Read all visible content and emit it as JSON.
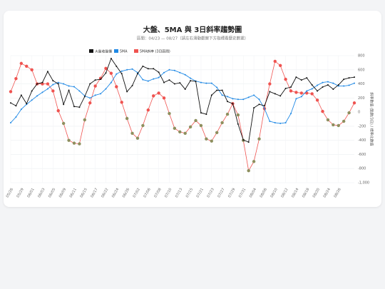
{
  "chart_data": {
    "type": "line",
    "title": "大盤、5MA 與 3日斜率趨勢圖",
    "subtitle": "區間：04/23 — 08/27（請左右滑動觀察下方指標看歷史數據）",
    "y_label": "斜率數值 (點數/3日) / 標準化數值",
    "categories": [
      "05/26",
      null,
      "05/29",
      null,
      "06/01",
      null,
      "06/03",
      null,
      "06/05",
      null,
      "06/09",
      null,
      "06/11",
      null,
      "06/15",
      null,
      "06/17",
      null,
      "06/22",
      null,
      "06/24",
      null,
      "06/26",
      null,
      "07/02",
      null,
      "07/06",
      null,
      "07/08",
      null,
      "07/10",
      null,
      "07/13",
      null,
      "07/15",
      null,
      "07/21",
      null,
      "07/23",
      null,
      "07/27",
      null,
      "07/29",
      null,
      "07/31",
      null,
      "08/04",
      null,
      "08/06",
      null,
      "08/10",
      null,
      "08/12",
      null,
      "08/14",
      null,
      "08/18",
      null,
      "08/20",
      null,
      "08/24",
      null,
      "08/26",
      null,
      null,
      null
    ],
    "series": [
      {
        "name": "大盤收盤價",
        "color": "#111111",
        "values": [
          130,
          90,
          240,
          120,
          300,
          400,
          420,
          575,
          445,
          400,
          110,
          310,
          80,
          70,
          220,
          400,
          455,
          465,
          555,
          760,
          650,
          545,
          290,
          375,
          545,
          650,
          615,
          615,
          565,
          420,
          455,
          400,
          415,
          325,
          445,
          435,
          -10,
          -30,
          240,
          310,
          310,
          150,
          120,
          -170,
          -395,
          -425,
          60,
          110,
          90,
          290,
          260,
          230,
          335,
          355,
          495,
          455,
          485,
          385,
          300,
          355,
          385,
          325,
          385,
          465,
          485,
          495
        ]
      },
      {
        "name": "5MA",
        "color": "#1e88e5",
        "values": [
          -150,
          -70,
          40,
          110,
          170,
          230,
          280,
          330,
          390,
          420,
          400,
          370,
          360,
          300,
          230,
          200,
          240,
          260,
          330,
          420,
          540,
          580,
          600,
          610,
          560,
          460,
          440,
          470,
          490,
          560,
          600,
          590,
          560,
          530,
          480,
          440,
          420,
          410,
          410,
          350,
          240,
          220,
          190,
          180,
          180,
          210,
          240,
          180,
          50,
          -130,
          -150,
          -160,
          -150,
          -20,
          190,
          220,
          300,
          330,
          380,
          420,
          430,
          410,
          370,
          370,
          380,
          410
        ]
      },
      {
        "name": "5MA斜率 (3日區間)",
        "color": "#ef5350",
        "negative_color": "#8d8f5e",
        "values": [
          290,
          475,
          690,
          650,
          600,
          400,
          400,
          400,
          300,
          20,
          -160,
          -400,
          -440,
          -450,
          -110,
          130,
          370,
          480,
          620,
          550,
          360,
          140,
          -90,
          -300,
          -370,
          -190,
          30,
          230,
          270,
          200,
          -20,
          -230,
          -280,
          -300,
          -210,
          -120,
          -190,
          -380,
          -410,
          -290,
          -150,
          -30,
          120,
          -40,
          -400,
          -830,
          -700,
          -380,
          50,
          400,
          720,
          660,
          465,
          300,
          280,
          270,
          270,
          260,
          170,
          10,
          -110,
          -180,
          -190,
          -130,
          -10,
          130
        ]
      }
    ],
    "ylim": [
      -1000,
      800
    ],
    "yticks": [
      800,
      600,
      400,
      200,
      0,
      -200,
      -400,
      -600,
      -800,
      {
        "value": -1000,
        "label": "-1,000"
      }
    ],
    "grid": true,
    "legend": "top"
  }
}
